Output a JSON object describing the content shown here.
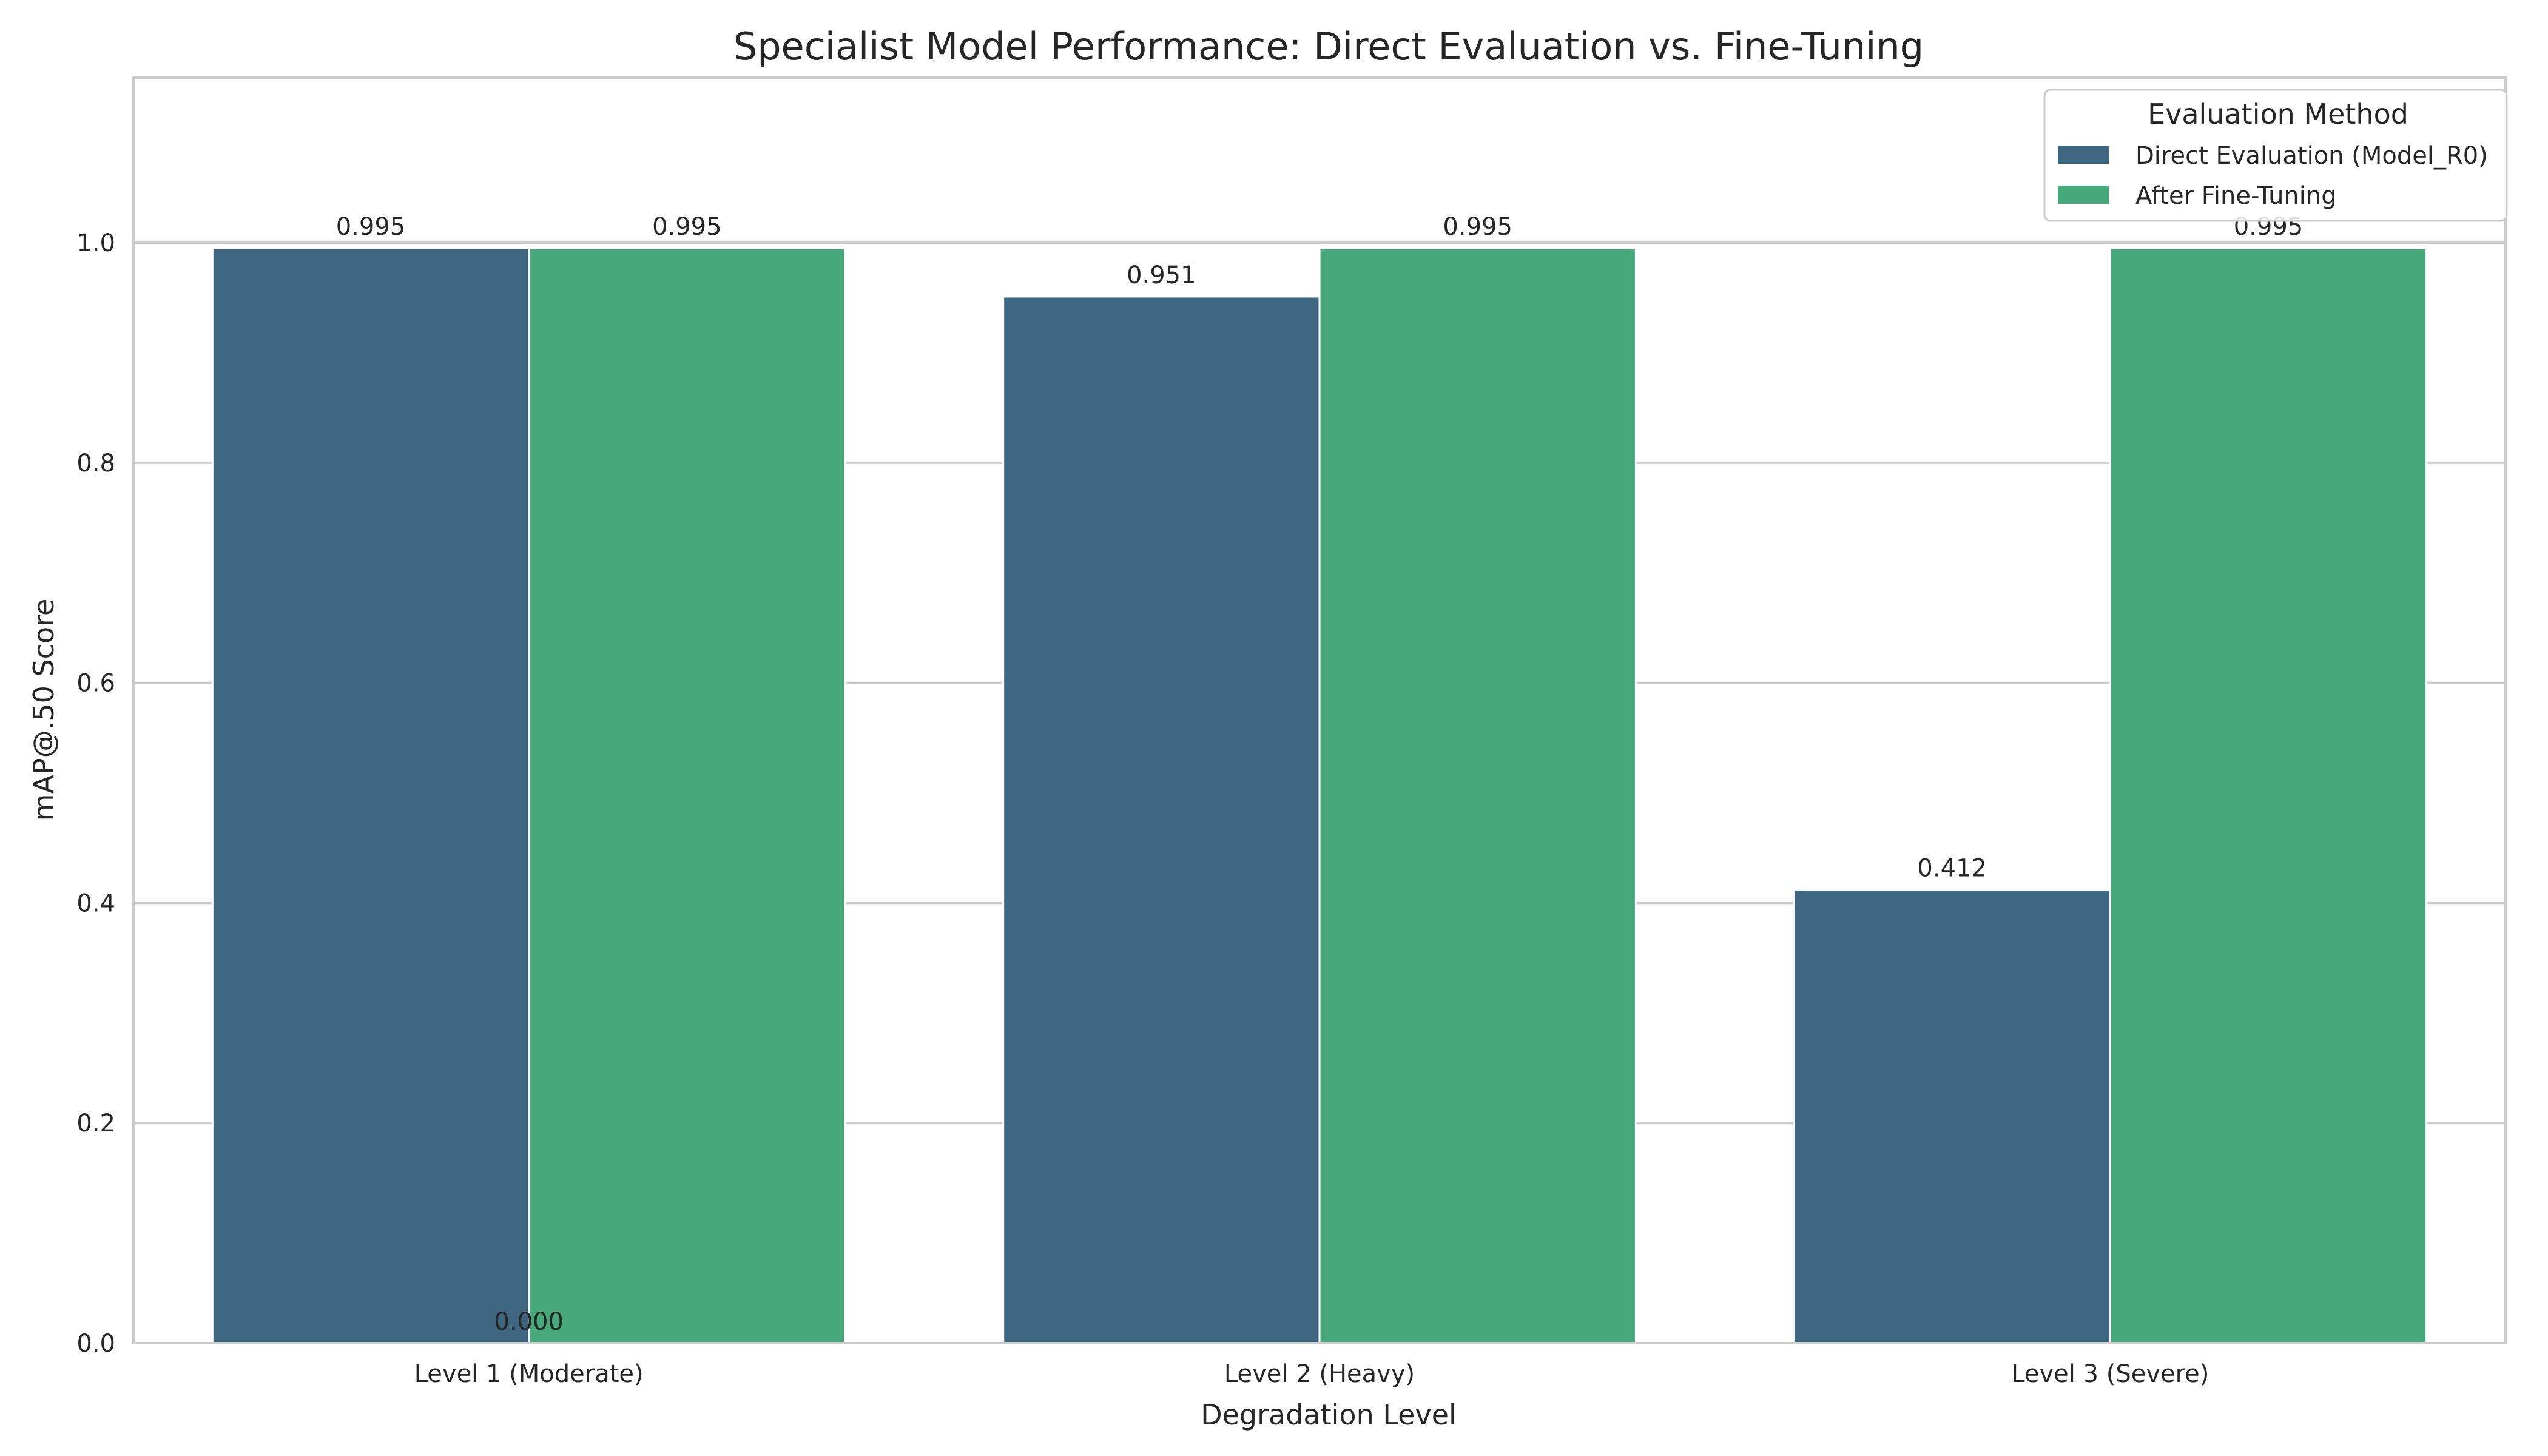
{
  "chart_data": {
    "type": "bar",
    "title": "Specialist Model Performance: Direct Evaluation vs. Fine-Tuning",
    "xlabel": "Degradation Level",
    "ylabel": "mAP@.50 Score",
    "categories": [
      "Level 1 (Moderate)",
      "Level 2 (Heavy)",
      "Level 3 (Severe)"
    ],
    "series": [
      {
        "name": "Direct Evaluation (Model_R0)",
        "color": "#3e6680",
        "values": [
          0.995,
          0.951,
          0.412
        ],
        "labels": [
          "0.995",
          "0.951",
          "0.412"
        ]
      },
      {
        "name": "After Fine-Tuning",
        "color": "#47a87b",
        "values": [
          0.995,
          0.995,
          0.995
        ],
        "labels": [
          "0.995",
          "0.995",
          "0.995"
        ]
      }
    ],
    "extra_annotations": [
      {
        "text": "0.000",
        "category_index": 0,
        "series_boundary": true,
        "value": 0.0
      }
    ],
    "ylim": [
      0,
      1.15
    ],
    "yticks": [
      0.0,
      0.2,
      0.4,
      0.6,
      0.8,
      1.0
    ],
    "ytick_labels": [
      "0.0",
      "0.2",
      "0.4",
      "0.6",
      "0.8",
      "1.0"
    ],
    "grid": true,
    "legend": {
      "title": "Evaluation Method",
      "placement": "top-right"
    }
  }
}
